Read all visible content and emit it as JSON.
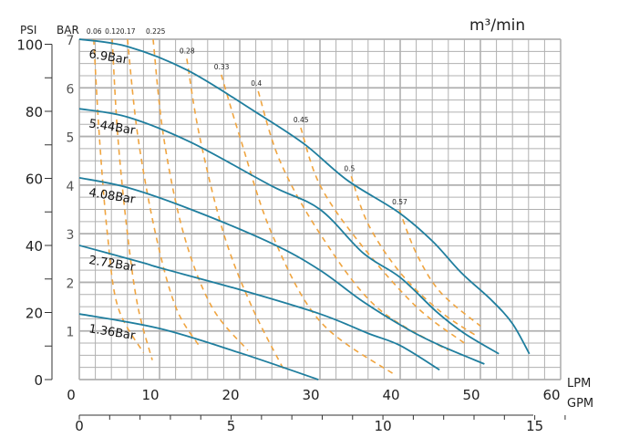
{
  "chart_data": {
    "type": "line",
    "title": "",
    "unit_label": "m³/min",
    "x_axis": {
      "label": "LPM",
      "range": [
        0,
        60
      ],
      "ticks": [
        0,
        10,
        20,
        30,
        40,
        50,
        60
      ]
    },
    "x2_axis": {
      "label": "GPM",
      "range": [
        0,
        15.85
      ],
      "ticks": [
        0,
        5,
        10,
        15
      ],
      "minor_step": 1
    },
    "y_axis": {
      "label": "BAR",
      "range": [
        0,
        7
      ],
      "ticks": [
        1,
        2,
        3,
        4,
        5,
        6,
        7
      ]
    },
    "y2_axis": {
      "label": "PSI",
      "range": [
        0,
        101.5
      ],
      "ticks": [
        0,
        20,
        40,
        60,
        80,
        100
      ],
      "minor_step": 10
    },
    "grid": true,
    "pressure_curves": [
      {
        "name": "6.9Bar",
        "points": [
          [
            0,
            7.0
          ],
          [
            6,
            6.85
          ],
          [
            13.5,
            6.36
          ],
          [
            22,
            5.5
          ],
          [
            28,
            4.85
          ],
          [
            33.4,
            4.1
          ],
          [
            39.7,
            3.45
          ],
          [
            44,
            2.85
          ],
          [
            47.6,
            2.2
          ],
          [
            51.4,
            1.63
          ],
          [
            54,
            1.15
          ],
          [
            56.1,
            0.53
          ]
        ]
      },
      {
        "name": "5.44Bar",
        "points": [
          [
            0,
            5.57
          ],
          [
            6,
            5.4
          ],
          [
            13.9,
            4.88
          ],
          [
            24,
            3.98
          ],
          [
            30,
            3.5
          ],
          [
            35.4,
            2.6
          ],
          [
            40,
            2.1
          ],
          [
            44.5,
            1.4
          ],
          [
            48,
            0.95
          ],
          [
            52.3,
            0.53
          ]
        ]
      },
      {
        "name": "4.08Bar",
        "points": [
          [
            0,
            4.15
          ],
          [
            6,
            3.95
          ],
          [
            13.9,
            3.5
          ],
          [
            24,
            2.8
          ],
          [
            30,
            2.25
          ],
          [
            35.4,
            1.6
          ],
          [
            41,
            1.03
          ],
          [
            45,
            0.7
          ],
          [
            50.5,
            0.32
          ]
        ]
      },
      {
        "name": "2.72Bar",
        "points": [
          [
            0,
            2.76
          ],
          [
            8,
            2.4
          ],
          [
            10,
            2.3
          ],
          [
            20,
            1.85
          ],
          [
            30,
            1.35
          ],
          [
            36,
            0.95
          ],
          [
            40,
            0.7
          ],
          [
            44.9,
            0.2
          ]
        ]
      },
      {
        "name": "1.36Bar",
        "points": [
          [
            0,
            1.35
          ],
          [
            10,
            1.05
          ],
          [
            20,
            0.55
          ],
          [
            29.8,
            0.0
          ]
        ]
      }
    ],
    "air_flow_curves": [
      {
        "name": "0.06",
        "points": [
          [
            1.8,
            7
          ],
          [
            2.5,
            5
          ],
          [
            3.5,
            3
          ],
          [
            4.8,
            1.5
          ],
          [
            8.0,
            0.55
          ]
        ]
      },
      {
        "name": "0.12",
        "points": [
          [
            4.1,
            7
          ],
          [
            4.8,
            5
          ],
          [
            6.0,
            3
          ],
          [
            7.3,
            1.5
          ],
          [
            9.1,
            0.4
          ]
        ]
      },
      {
        "name": "0.17",
        "points": [
          [
            6.0,
            7
          ],
          [
            7.3,
            5
          ],
          [
            9.5,
            3
          ],
          [
            12,
            1.5
          ],
          [
            14.9,
            0.7
          ]
        ]
      },
      {
        "name": "0.225",
        "points": [
          [
            9.2,
            7
          ],
          [
            10.5,
            5
          ],
          [
            13,
            3
          ],
          [
            16.5,
            1.5
          ],
          [
            21,
            0.6
          ]
        ]
      },
      {
        "name": "0.28",
        "points": [
          [
            13.4,
            6.6
          ],
          [
            15,
            5
          ],
          [
            18,
            3
          ],
          [
            21.5,
            1.5
          ],
          [
            25.5,
            0.2
          ]
        ]
      },
      {
        "name": "0.33",
        "points": [
          [
            17.7,
            6.27
          ],
          [
            20,
            5
          ],
          [
            24,
            3
          ],
          [
            30,
            1.2
          ],
          [
            39.3,
            0.1
          ]
        ]
      },
      {
        "name": "0.4",
        "points": [
          [
            22.3,
            5.93
          ],
          [
            25,
            4.5
          ],
          [
            30,
            3
          ],
          [
            37,
            1.5
          ],
          [
            46,
            0.6
          ]
        ]
      },
      {
        "name": "0.45",
        "points": [
          [
            27.6,
            5.18
          ],
          [
            30,
            4
          ],
          [
            35,
            2.8
          ],
          [
            42,
            1.5
          ],
          [
            48,
            0.75
          ]
        ]
      },
      {
        "name": "0.5",
        "points": [
          [
            33.9,
            4.18
          ],
          [
            36,
            3.2
          ],
          [
            40,
            2.2
          ],
          [
            45,
            1.4
          ],
          [
            49.5,
            0.9
          ]
        ]
      },
      {
        "name": "0.57",
        "points": [
          [
            39.9,
            3.49
          ],
          [
            42,
            2.6
          ],
          [
            45,
            1.8
          ],
          [
            50,
            1.1
          ]
        ]
      }
    ],
    "colors": {
      "pressure": "#1f7e9e",
      "air": "#f0a540",
      "grid": "#b0b0b0"
    }
  }
}
